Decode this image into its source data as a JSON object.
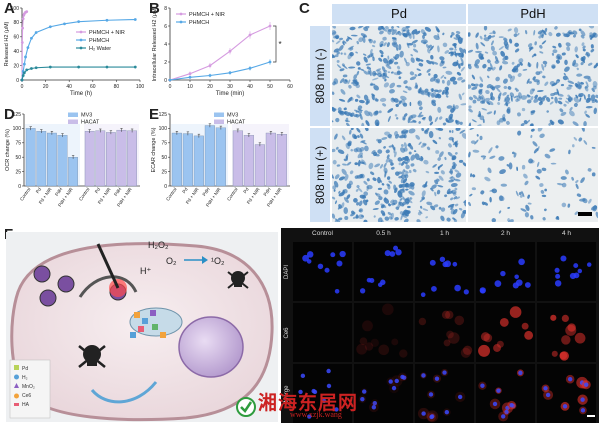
{
  "panels": {
    "a": "A",
    "b": "B",
    "c": "C",
    "d": "D",
    "e": "E",
    "f": "F",
    "g": "G"
  },
  "colors": {
    "pink": "#d59be0",
    "blue": "#56a8e6",
    "teal": "#2a8a9a",
    "mv3": "#9bc4f0",
    "hacat": "#c9bde8",
    "stain": "#3a79b5",
    "header": "#cfe0f4"
  },
  "chart_data": [
    {
      "type": "line",
      "panel": "A",
      "xlabel": "Time (h)",
      "ylabel": "Released H2 (μM)",
      "xlim": [
        0,
        100
      ],
      "ylim": [
        0,
        100
      ],
      "xticks": [
        0,
        20,
        40,
        60,
        80,
        100
      ],
      "yticks": [
        0,
        20,
        40,
        60,
        80,
        100
      ],
      "legend_position": "center-right",
      "series": [
        {
          "name": "PHMCH + NIR",
          "color": "#d59be0",
          "x": [
            0,
            0.25,
            0.5,
            1,
            1.5,
            2,
            3,
            4
          ],
          "y": [
            0,
            52,
            72,
            85,
            90,
            92,
            94,
            95
          ]
        },
        {
          "name": "PHMCH",
          "color": "#56a8e6",
          "x": [
            0,
            1,
            2,
            3,
            5,
            8,
            12,
            24,
            36,
            48,
            72,
            96
          ],
          "y": [
            0,
            12,
            22,
            32,
            45,
            58,
            66,
            74,
            78,
            81,
            83,
            84
          ]
        },
        {
          "name": "H₂ Water",
          "color": "#2a8a9a",
          "x": [
            0,
            1,
            2,
            4,
            8,
            12,
            24,
            48,
            72,
            96
          ],
          "y": [
            0,
            6,
            10,
            14,
            16,
            17,
            18,
            18,
            18,
            18
          ]
        }
      ]
    },
    {
      "type": "line",
      "panel": "B",
      "xlabel": "Time (min)",
      "ylabel": "Intracellular Released H2 (μM)",
      "xlim": [
        0,
        60
      ],
      "ylim": [
        0,
        8
      ],
      "xticks": [
        0,
        10,
        20,
        30,
        40,
        50,
        60
      ],
      "yticks": [
        0,
        2,
        4,
        6,
        8
      ],
      "legend_position": "top-left",
      "annotation": "*",
      "series": [
        {
          "name": "PHMCH + NIR",
          "color": "#d59be0",
          "x": [
            0,
            10,
            20,
            30,
            40,
            50
          ],
          "y": [
            0,
            0.7,
            1.6,
            3.2,
            5.0,
            6.0
          ],
          "err": [
            0.1,
            0.25,
            0.3,
            0.35,
            0.4,
            0.45
          ]
        },
        {
          "name": "PHMCH",
          "color": "#56a8e6",
          "x": [
            0,
            10,
            20,
            30,
            40,
            50
          ],
          "y": [
            0,
            0.3,
            0.5,
            0.8,
            1.3,
            2.0
          ],
          "err": [
            0.05,
            0.15,
            0.2,
            0.2,
            0.25,
            0.3
          ]
        }
      ]
    },
    {
      "type": "bar",
      "panel": "D",
      "ylabel": "OCR change (%)",
      "ylim": [
        0,
        125
      ],
      "yticks": [
        0,
        25,
        50,
        75,
        100,
        125
      ],
      "legend_position": "top-center",
      "series": [
        {
          "name": "MV3",
          "color": "#9bc4f0",
          "categories": [
            "Control",
            "Pd",
            "Pd + NIR",
            "PdH",
            "PdH + NIR"
          ],
          "values": [
            100,
            95,
            92,
            88,
            50
          ],
          "err": [
            3,
            3,
            3,
            3,
            3
          ]
        },
        {
          "name": "HACAT",
          "color": "#c9bde8",
          "categories": [
            "Control",
            "Pd",
            "Pd + NIR",
            "PdH",
            "PdH + NIR"
          ],
          "values": [
            95,
            96,
            93,
            97,
            96
          ],
          "err": [
            3,
            3,
            3,
            3,
            3
          ]
        }
      ]
    },
    {
      "type": "bar",
      "panel": "E",
      "ylabel": "ECAR change (%)",
      "ylim": [
        0,
        125
      ],
      "yticks": [
        0,
        25,
        50,
        75,
        100,
        125
      ],
      "legend_position": "top-center",
      "series": [
        {
          "name": "MV3",
          "color": "#9bc4f0",
          "categories": [
            "Control",
            "Pd",
            "Pd + NIR",
            "PdH",
            "PdH + NIR"
          ],
          "values": [
            92,
            91,
            87,
            105,
            101
          ],
          "err": [
            3,
            3,
            3,
            3,
            3
          ]
        },
        {
          "name": "HACAT",
          "color": "#c9bde8",
          "categories": [
            "Control",
            "Pd",
            "Pd + NIR",
            "PdH",
            "PdH + NIR"
          ],
          "values": [
            96,
            88,
            72,
            92,
            90
          ],
          "err": [
            3,
            3,
            3,
            3,
            3
          ]
        }
      ]
    }
  ],
  "micro": {
    "col_headers": [
      "Pd",
      "PdH"
    ],
    "row_headers": [
      "808 nm (-)",
      "808 nm (+)"
    ],
    "densities": [
      0.9,
      0.75,
      0.8,
      0.25
    ]
  },
  "schematic": {
    "h2o2": "H₂O₂",
    "o2": "O₂",
    "o2_singlet": "¹O₂",
    "h_plus": "H⁺",
    "legend": [
      "Pd",
      "H₂",
      "MnO₂",
      "Ce6",
      "HA"
    ]
  },
  "fluor": {
    "col_headers": [
      "Control",
      "0.5 h",
      "1 h",
      "2 h",
      "4 h"
    ],
    "row_headers": [
      "DAPI",
      "Ce6",
      "Merge"
    ],
    "red_intensity": [
      0.0,
      0.15,
      0.3,
      0.75,
      0.85
    ]
  },
  "watermark": {
    "main": "湘海东居网",
    "sub": "www.xzjk.wang"
  }
}
